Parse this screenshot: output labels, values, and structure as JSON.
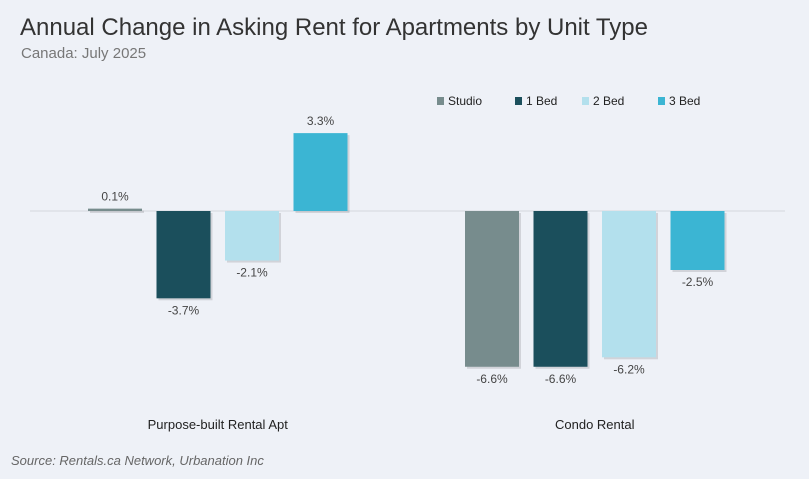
{
  "chart_data": {
    "type": "bar",
    "title": "Annual Change in Asking Rent for Apartments by Unit Type",
    "subtitle": "Canada: July 2025",
    "source": "Source: Rentals.ca Network, Urbanation Inc",
    "categories": [
      "Purpose-built Rental Apt",
      "Condo Rental"
    ],
    "series": [
      {
        "name": "Studio",
        "color": "#778c8d",
        "values": [
          0.1,
          -6.6
        ],
        "labels": [
          "0.1%",
          "-6.6%"
        ]
      },
      {
        "name": "1 Bed",
        "color": "#1b4f5c",
        "values": [
          -3.7,
          -6.6
        ],
        "labels": [
          "-3.7%",
          "-6.6%"
        ]
      },
      {
        "name": "2 Bed",
        "color": "#b3e0ed",
        "values": [
          -2.1,
          -6.2
        ],
        "labels": [
          "-2.1%",
          "-6.2%"
        ]
      },
      {
        "name": "3 Bed",
        "color": "#3bb5d3",
        "values": [
          3.3,
          -2.5
        ],
        "labels": [
          "3.3%",
          "-2.5%"
        ]
      }
    ],
    "ylim": [
      -7.5,
      4.0
    ],
    "grid": false,
    "legend": "top-right",
    "xlabel": "",
    "ylabel": ""
  }
}
